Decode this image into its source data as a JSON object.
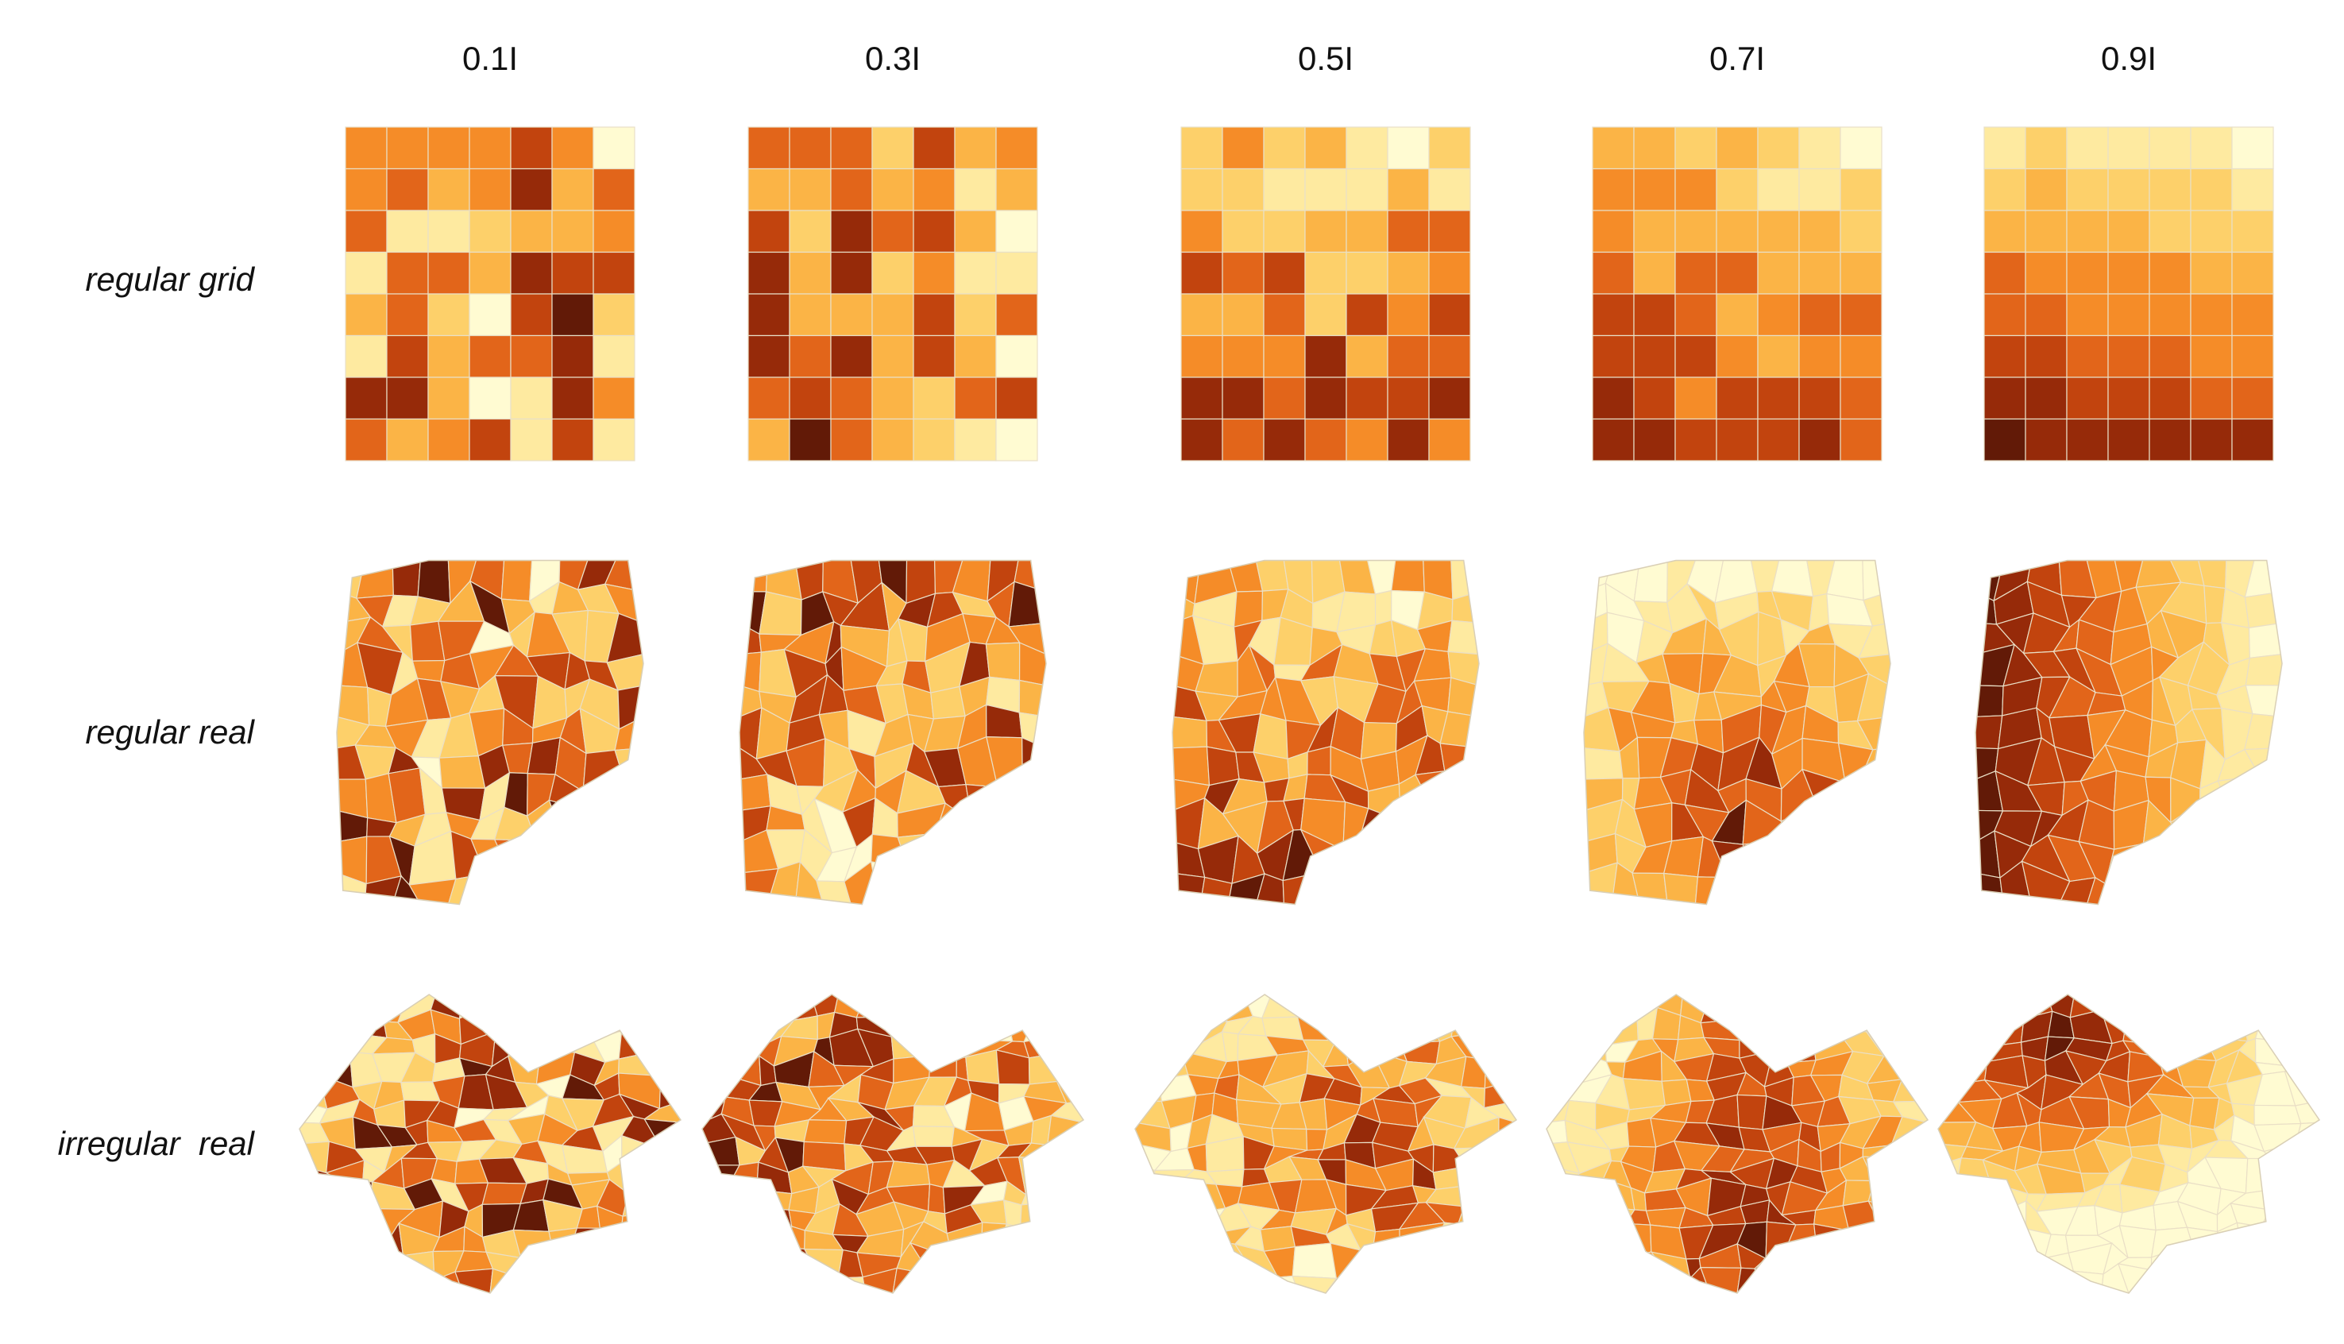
{
  "column_labels": [
    "0.1I",
    "0.3I",
    "0.5I",
    "0.7I",
    "0.9I"
  ],
  "row_labels": [
    "regular grid",
    "regular real",
    "irregular  real"
  ]
}
